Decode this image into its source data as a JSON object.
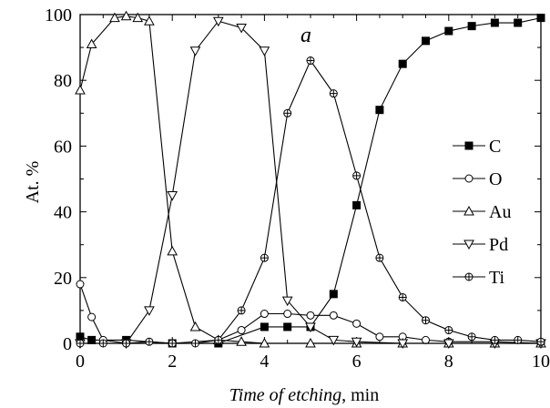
{
  "chart_data": {
    "type": "line",
    "panel_label": "a",
    "xlabel_italic": "Time of etching",
    "xlabel_unit": ", min",
    "ylabel": "At. %",
    "xlim": [
      0,
      10
    ],
    "ylim": [
      0,
      100
    ],
    "xticks": [
      0,
      2,
      4,
      6,
      8,
      10
    ],
    "yticks": [
      0,
      20,
      40,
      60,
      80,
      100
    ],
    "legend_position": "right",
    "series": [
      {
        "name": "C",
        "marker": "square-filled",
        "x": [
          0,
          0.25,
          1,
          2,
          3,
          4,
          4.5,
          5,
          5.5,
          6,
          6.5,
          7,
          7.5,
          8,
          8.5,
          9,
          9.5,
          10
        ],
        "y": [
          2,
          1,
          1,
          0,
          0,
          5,
          5,
          5,
          15,
          42,
          71,
          85,
          92,
          95,
          96.5,
          97.5,
          97.5,
          99
        ]
      },
      {
        "name": "O",
        "marker": "circle-open",
        "x": [
          0,
          0.25,
          0.5,
          1,
          2,
          3,
          3.5,
          4,
          4.5,
          5,
          5.5,
          6,
          6.5,
          7,
          7.5,
          8,
          9,
          10
        ],
        "y": [
          18,
          8,
          1,
          0,
          0,
          1,
          4,
          9,
          9,
          8.5,
          8.5,
          6,
          2,
          2,
          1,
          0.5,
          0.5,
          0
        ]
      },
      {
        "name": "Au",
        "marker": "triangle-up-open",
        "x": [
          0,
          0.25,
          0.75,
          1,
          1.25,
          1.5,
          2,
          2.5,
          3,
          3.5,
          4,
          5,
          6,
          7,
          8,
          9,
          10
        ],
        "y": [
          77,
          91,
          99,
          99.5,
          99,
          98,
          28,
          5,
          1,
          0.5,
          0,
          0,
          0,
          0,
          0,
          0,
          0
        ]
      },
      {
        "name": "Pd",
        "marker": "triangle-down-open",
        "x": [
          0,
          1,
          1.5,
          2,
          2.5,
          3,
          3.5,
          4,
          4.5,
          5,
          5.5,
          6,
          7,
          8,
          9,
          10
        ],
        "y": [
          0,
          0,
          10,
          45,
          89,
          98,
          96,
          89,
          13,
          5,
          1,
          0.5,
          0,
          0,
          0,
          0
        ]
      },
      {
        "name": "Ti",
        "marker": "circle-crossed",
        "x": [
          0,
          0.5,
          1,
          1.5,
          2,
          2.5,
          3,
          3.5,
          4,
          4.5,
          5,
          5.5,
          6,
          6.5,
          7,
          7.5,
          8,
          8.5,
          9,
          9.5,
          10
        ],
        "y": [
          0,
          0,
          0,
          0.5,
          0,
          0,
          1,
          10,
          26,
          70,
          86,
          76,
          51,
          26,
          14,
          7,
          4,
          2,
          1,
          1,
          0.5
        ]
      }
    ]
  }
}
